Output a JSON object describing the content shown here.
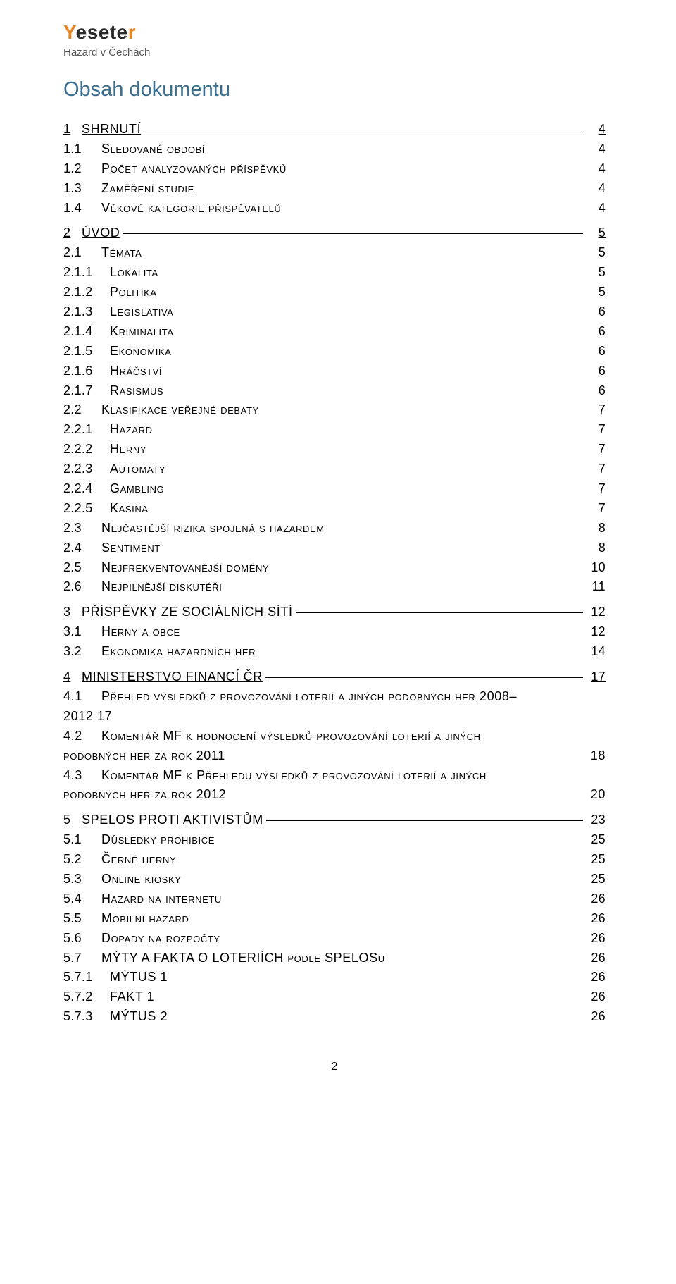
{
  "logo": {
    "part1": "Y",
    "part2": "esete",
    "part3": "r"
  },
  "subtitle": "Hazard v Čechách",
  "heading": "Obsah dokumentu",
  "footer_page": "2",
  "toc": [
    {
      "lvl": 1,
      "num": "1",
      "label": "SHRNUTÍ",
      "page": "4"
    },
    {
      "lvl": 2,
      "num": "1.1",
      "label": "Sledované období",
      "page": "4"
    },
    {
      "lvl": 2,
      "num": "1.2",
      "label": "Počet analyzovaných příspěvků",
      "page": "4"
    },
    {
      "lvl": 2,
      "num": "1.3",
      "label": "Zaměření studie",
      "page": "4"
    },
    {
      "lvl": 2,
      "num": "1.4",
      "label": "Věkové kategorie přispěvatelů",
      "page": "4"
    },
    {
      "lvl": 1,
      "num": "2",
      "label": "ÚVOD",
      "page": "5"
    },
    {
      "lvl": 2,
      "num": "2.1",
      "label": "Témata",
      "page": "5"
    },
    {
      "lvl": 3,
      "num": "2.1.1",
      "label": "Lokalita",
      "page": "5"
    },
    {
      "lvl": 3,
      "num": "2.1.2",
      "label": "Politika",
      "page": "5"
    },
    {
      "lvl": 3,
      "num": "2.1.3",
      "label": "Legislativa",
      "page": "6"
    },
    {
      "lvl": 3,
      "num": "2.1.4",
      "label": "Kriminalita",
      "page": "6"
    },
    {
      "lvl": 3,
      "num": "2.1.5",
      "label": "Ekonomika",
      "page": "6"
    },
    {
      "lvl": 3,
      "num": "2.1.6",
      "label": "Hráčství",
      "page": "6"
    },
    {
      "lvl": 3,
      "num": "2.1.7",
      "label": "Rasismus",
      "page": "6"
    },
    {
      "lvl": 2,
      "num": "2.2",
      "label": "Klasifikace veřejné debaty",
      "page": "7"
    },
    {
      "lvl": 3,
      "num": "2.2.1",
      "label": "Hazard",
      "page": "7"
    },
    {
      "lvl": 3,
      "num": "2.2.2",
      "label": "Herny",
      "page": "7"
    },
    {
      "lvl": 3,
      "num": "2.2.3",
      "label": "Automaty",
      "page": "7"
    },
    {
      "lvl": 3,
      "num": "2.2.4",
      "label": "Gambling",
      "page": "7"
    },
    {
      "lvl": 3,
      "num": "2.2.5",
      "label": "Kasina",
      "page": "7"
    },
    {
      "lvl": 2,
      "num": "2.3",
      "label": "Nejčastější rizika spojená s hazardem",
      "page": "8"
    },
    {
      "lvl": 2,
      "num": "2.4",
      "label": "Sentiment",
      "page": "8"
    },
    {
      "lvl": 2,
      "num": "2.5",
      "label": "Nejfrekventovanější domény",
      "page": "10"
    },
    {
      "lvl": 2,
      "num": "2.6",
      "label": "Nejpilnější diskutéři",
      "page": "11"
    },
    {
      "lvl": 1,
      "num": "3",
      "label": "PŘÍSPĚVKY ZE SOCIÁLNÍCH SÍTÍ",
      "page": "12"
    },
    {
      "lvl": 2,
      "num": "3.1",
      "label": "Herny a obce",
      "page": "12"
    },
    {
      "lvl": 2,
      "num": "3.2",
      "label": "Ekonomika hazardních her",
      "page": "14"
    },
    {
      "lvl": 1,
      "num": "4",
      "label": "MINISTERSTVO FINANCÍ ČR",
      "page": "17"
    },
    {
      "lvl": 2,
      "num": "4.1",
      "wrap": true,
      "label": "Přehled výsledků z provozování loterií a jiných podobných her 2008–",
      "second": "2012 17",
      "page": ""
    },
    {
      "lvl": 2,
      "num": "4.2",
      "wrap": true,
      "label": "Komentář MF k hodnocení výsledků provozování loterií a jiných",
      "second": "podobných her za rok 2011",
      "page": "18"
    },
    {
      "lvl": 2,
      "num": "4.3",
      "wrap": true,
      "label": "Komentář MF k Přehledu výsledků z provozování loterií a jiných",
      "second": "podobných her za rok 2012",
      "page": "20"
    },
    {
      "lvl": 1,
      "num": "5",
      "label": "SPELOS PROTI AKTIVISTŮM",
      "page": "23"
    },
    {
      "lvl": 2,
      "num": "5.1",
      "label": "Důsledky prohibice",
      "page": "25"
    },
    {
      "lvl": 2,
      "num": "5.2",
      "label": "Černé herny",
      "page": "25"
    },
    {
      "lvl": 2,
      "num": "5.3",
      "label": "Online kiosky",
      "page": "25"
    },
    {
      "lvl": 2,
      "num": "5.4",
      "label": "Hazard na internetu",
      "page": "26"
    },
    {
      "lvl": 2,
      "num": "5.5",
      "label": "Mobilní hazard",
      "page": "26"
    },
    {
      "lvl": 2,
      "num": "5.6",
      "label": "Dopady na rozpočty",
      "page": "26"
    },
    {
      "lvl": 2,
      "num": "5.7",
      "label": "MÝTY A FAKTA O LOTERIÍCH podle SPELOSu",
      "page": "26"
    },
    {
      "lvl": 3,
      "num": "5.7.1",
      "label": "MÝTUS 1",
      "page": "26"
    },
    {
      "lvl": 3,
      "num": "5.7.2",
      "label": "FAKT 1",
      "page": "26"
    },
    {
      "lvl": 3,
      "num": "5.7.3",
      "label": "MÝTUS 2",
      "page": "26"
    }
  ]
}
